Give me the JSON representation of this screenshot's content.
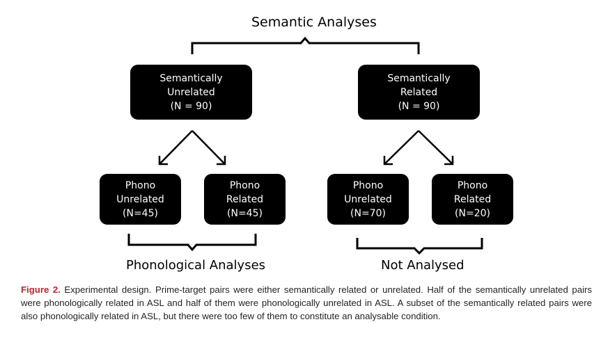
{
  "top_label": "Semantic Analyses",
  "boxes": {
    "sem_unrelated": [
      "Semantically",
      "Unrelated",
      "(N = 90)"
    ],
    "sem_related": [
      "Semantically",
      "Related",
      "(N = 90)"
    ],
    "phono_unrel_1": [
      "Phono",
      "Unrelated",
      "(N=45)"
    ],
    "phono_rel_1": [
      "Phono",
      "Related",
      "(N=45)"
    ],
    "phono_unrel_2": [
      "Phono",
      "Unrelated",
      "(N=70)"
    ],
    "phono_rel_2": [
      "Phono",
      "Related",
      "(N=20)"
    ]
  },
  "bottom_labels": {
    "phonological": "Phonological Analyses",
    "not_analysed": "Not Analysed"
  },
  "caption": {
    "figure_label": "Figure 2.",
    "text": " Experimental design. Prime-target pairs were either semantically related or unrelated. Half of the semantically unrelated pairs were phonologically related in ASL and half of them were phonologically unrelated in ASL. A subset of the semantically related pairs were also phonologically related in ASL, but there were too few of them to constitute an analysable condition."
  },
  "colors": {
    "box_fill": "#000000",
    "box_text": "#ffffff",
    "caption_accent": "#b5262e"
  }
}
